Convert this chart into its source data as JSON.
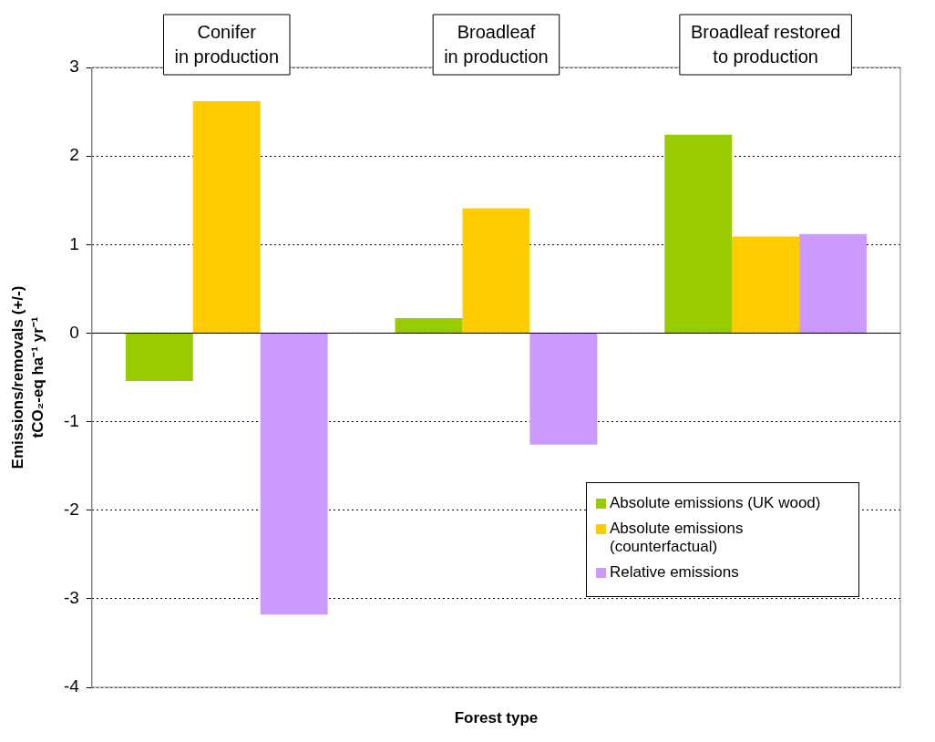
{
  "chart_data": {
    "type": "bar",
    "xlabel": "Forest type",
    "ylabel": "Emissions/removals (+/-)\ntCO₂-eq ha⁻¹ yr⁻¹",
    "categories": [
      "Conifer\nin production",
      "Broadleaf\nin production",
      "Broadleaf restored\nto production"
    ],
    "series": [
      {
        "name": "Absolute emissions (UK wood)",
        "color": "#99cc00",
        "values": [
          -0.54,
          0.17,
          2.24
        ]
      },
      {
        "name": "Absolute emissions (counterfactual)",
        "color": "#ffcc00",
        "values": [
          2.62,
          1.41,
          1.09
        ]
      },
      {
        "name": "Relative emissions",
        "color": "#cc99ff",
        "values": [
          -3.18,
          -1.26,
          1.12
        ]
      }
    ],
    "ylim": [
      -4,
      3
    ],
    "yticks": [
      -4,
      -3,
      -2,
      -1,
      0,
      1,
      2,
      3
    ],
    "grid": "y",
    "legend": "bottom right"
  }
}
